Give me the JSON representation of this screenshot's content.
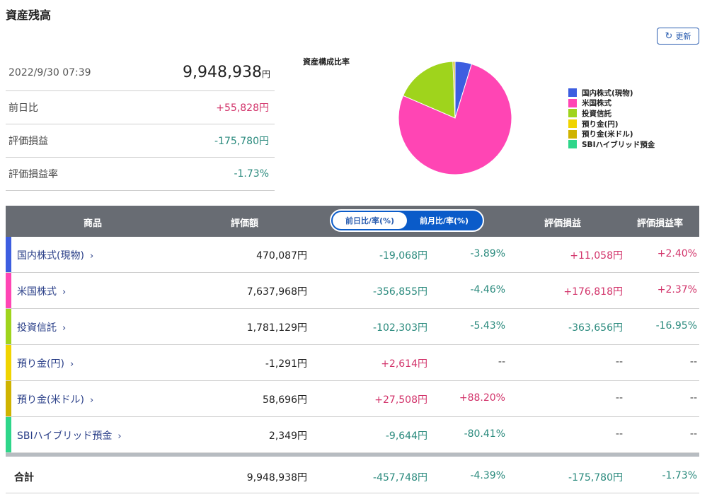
{
  "page_title": "資産残高",
  "refresh_label": "更新",
  "summary": {
    "datetime": "2022/9/30 07:39",
    "total_value": "9,948,938",
    "total_unit": "円",
    "rows": [
      {
        "label": "前日比",
        "value": "+55,828円",
        "sign": "pos"
      },
      {
        "label": "評価損益",
        "value": "-175,780円",
        "sign": "neg"
      },
      {
        "label": "評価損益率",
        "value": "-1.73%",
        "sign": "neg"
      }
    ]
  },
  "pie": {
    "title": "資産構成比率",
    "legend": [
      {
        "label": "国内株式(現物)",
        "color": "#3d5ee0"
      },
      {
        "label": "米国株式",
        "color": "#ff45b4"
      },
      {
        "label": "投資信託",
        "color": "#9fd41c"
      },
      {
        "label": "預り金(円)",
        "color": "#f0d400"
      },
      {
        "label": "預り金(米ドル)",
        "color": "#cfb300"
      },
      {
        "label": "SBIハイブリッド預金",
        "color": "#2ed68a"
      }
    ],
    "values": [
      470087,
      7637968,
      1781129,
      0,
      58696,
      2349
    ]
  },
  "table": {
    "headers": {
      "product": "商品",
      "value": "評価額",
      "toggle_day": "前日比/率(%)",
      "toggle_month": "前月比/率(%)",
      "gain": "評価損益",
      "gain_rate": "評価損益率"
    },
    "rows": [
      {
        "name": "国内株式(現物)",
        "color": "#3d5ee0",
        "value": "470,087円",
        "diff": "-19,068円",
        "diff_sign": "neg",
        "rate": "-3.89%",
        "rate_sign": "neg",
        "gain": "+11,058円",
        "gain_sign": "pos",
        "gain_rate": "+2.40%",
        "gain_rate_sign": "pos"
      },
      {
        "name": "米国株式",
        "color": "#ff45b4",
        "value": "7,637,968円",
        "diff": "-356,855円",
        "diff_sign": "neg",
        "rate": "-4.46%",
        "rate_sign": "neg",
        "gain": "+176,818円",
        "gain_sign": "pos",
        "gain_rate": "+2.37%",
        "gain_rate_sign": "pos"
      },
      {
        "name": "投資信託",
        "color": "#9fd41c",
        "value": "1,781,129円",
        "diff": "-102,303円",
        "diff_sign": "neg",
        "rate": "-5.43%",
        "rate_sign": "neg",
        "gain": "-363,656円",
        "gain_sign": "neg",
        "gain_rate": "-16.95%",
        "gain_rate_sign": "neg"
      },
      {
        "name": "預り金(円)",
        "color": "#f0d400",
        "value": "-1,291円",
        "diff": "+2,614円",
        "diff_sign": "pos",
        "rate": "--",
        "rate_sign": "dash",
        "gain": "--",
        "gain_sign": "dash",
        "gain_rate": "--",
        "gain_rate_sign": "dash"
      },
      {
        "name": "預り金(米ドル)",
        "color": "#cfb300",
        "value": "58,696円",
        "diff": "+27,508円",
        "diff_sign": "pos",
        "rate": "+88.20%",
        "rate_sign": "pos",
        "gain": "--",
        "gain_sign": "dash",
        "gain_rate": "--",
        "gain_rate_sign": "dash"
      },
      {
        "name": "SBIハイブリッド預金",
        "color": "#2ed68a",
        "value": "2,349円",
        "diff": "-9,644円",
        "diff_sign": "neg",
        "rate": "-80.41%",
        "rate_sign": "neg",
        "gain": "--",
        "gain_sign": "dash",
        "gain_rate": "--",
        "gain_rate_sign": "dash"
      }
    ],
    "total": {
      "name": "合計",
      "value": "9,948,938円",
      "diff": "-457,748円",
      "diff_sign": "neg",
      "rate": "-4.39%",
      "rate_sign": "neg",
      "gain": "-175,780円",
      "gain_sign": "neg",
      "gain_rate": "-1.73%",
      "gain_rate_sign": "neg"
    }
  }
}
